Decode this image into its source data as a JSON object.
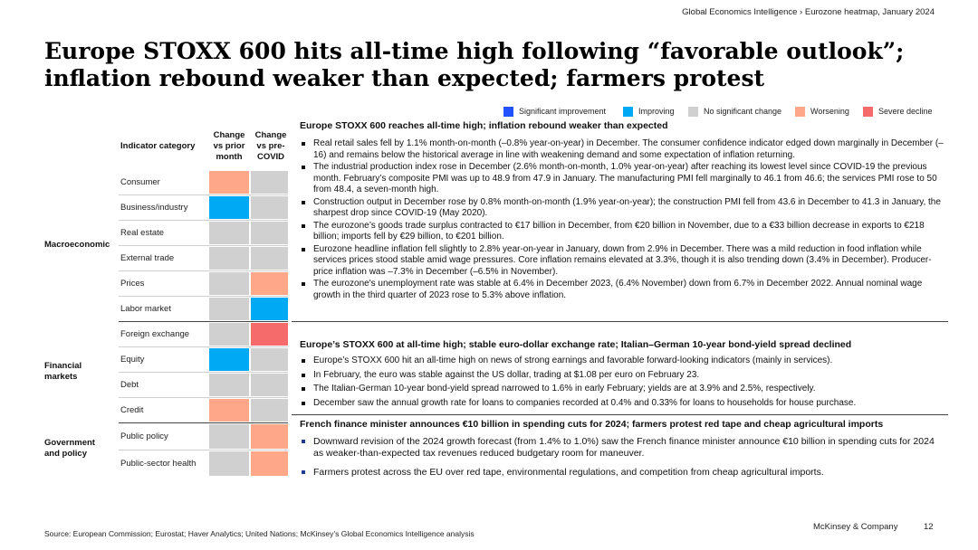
{
  "breadcrumb": "Global Economics Intelligence › Eurozone heatmap, January 2024",
  "title_line1": "Europe STOXX 600 hits all-time high following “favorable outlook”;",
  "title_line2": "inflation rebound weaker than expected; farmers protest",
  "colors": {
    "significant_improvement": "#2251ff",
    "improving": "#00a9f4",
    "no_change": "#d0d0d0",
    "worsening": "#ffa789",
    "severe_decline": "#f56a6a"
  },
  "legend": [
    {
      "label": "Significant improvement",
      "color": "#2251ff"
    },
    {
      "label": "Improving",
      "color": "#00a9f4"
    },
    {
      "label": "No significant change",
      "color": "#d0d0d0"
    },
    {
      "label": "Worsening",
      "color": "#ffa789"
    },
    {
      "label": "Severe decline",
      "color": "#f56a6a"
    }
  ],
  "table": {
    "header_category": "Indicator category",
    "header_col1": [
      "Change",
      "vs prior",
      "month"
    ],
    "header_col2": [
      "Change",
      "vs pre-",
      "COVID"
    ],
    "groups": [
      {
        "label": [
          "Macroeconomic"
        ]
      },
      {
        "label": [
          "Financial",
          "markets"
        ]
      },
      {
        "label": [
          "Government",
          "and policy"
        ]
      }
    ],
    "rows": [
      {
        "label": "Consumer",
        "prior_month": "worsening",
        "pre_covid": "no_change"
      },
      {
        "label": "Business/industry",
        "prior_month": "improving",
        "pre_covid": "no_change"
      },
      {
        "label": "Real estate",
        "prior_month": "no_change",
        "pre_covid": "no_change"
      },
      {
        "label": "External trade",
        "prior_month": "no_change",
        "pre_covid": "no_change"
      },
      {
        "label": "Prices",
        "prior_month": "no_change",
        "pre_covid": "worsening"
      },
      {
        "label": "Labor market",
        "prior_month": "no_change",
        "pre_covid": "improving"
      },
      {
        "label": "Foreign exchange",
        "prior_month": "no_change",
        "pre_covid": "severe_decline"
      },
      {
        "label": "Equity",
        "prior_month": "improving",
        "pre_covid": "no_change"
      },
      {
        "label": "Debt",
        "prior_month": "no_change",
        "pre_covid": "no_change"
      },
      {
        "label": "Credit",
        "prior_month": "worsening",
        "pre_covid": "no_change"
      },
      {
        "label": "Public policy",
        "prior_month": "no_change",
        "pre_covid": "worsening"
      },
      {
        "label": "Public-sector health",
        "prior_month": "no_change",
        "pre_covid": "worsening"
      }
    ]
  },
  "sections": [
    {
      "title": "Europe STOXX 600 reaches all-time high; inflation rebound weaker than expected",
      "bullets": [
        "Real retail sales fell by 1.1% month-on-month (–0.8% year-on-year) in December. The consumer confidence indicator edged down marginally in December (–16) and remains below the historical average in line with weakening demand and some expectation of inflation returning.",
        "The industrial production index rose in December (2.6% month-on-month, 1.0% year-on-year) after reaching its lowest level since COVID-19 the previous month. February’s composite PMI was up to 48.9 from 47.9 in January. The manufacturing PMI fell marginally to 46.1 from 46.6; the services PMI rose to 50 from 48.4, a seven-month high.",
        "Construction output in December rose by 0.8% month-on-month (1.9% year-on-year); the construction PMI fell from 43.6 in December to 41.3 in January, the sharpest drop since COVID-19 (May 2020).",
        "The eurozone’s goods trade surplus contracted to €17 billion in December, from €20 billion in November, due to a €33 billion decrease in exports to €218 billion; imports fell by €29 billion, to €201 billion.",
        "Eurozone headline inflation fell slightly to 2.8% year-on-year in January, down from 2.9% in December. There was a mild reduction in food inflation while services prices stood stable amid wage pressures. Core inflation remains elevated at 3.3%, though it is also trending down (3.4% in December). Producer-price inflation was –7.3% in December (–6.5% in November).",
        "The eurozone's unemployment rate was stable at 6.4% in December 2023, (6.4% November) down from 6.7% in December 2022. Annual nominal wage growth in the third quarter of 2023 rose to 5.3% above inflation."
      ]
    },
    {
      "title": "Europe’s STOXX 600 at all-time high; stable euro-dollar exchange rate; Italian–German 10-year bond-yield spread declined",
      "bullets": [
        "Europe’s STOXX 600 hit an all-time high on news of strong earnings and favorable forward-looking indicators (mainly in services).",
        "In February, the euro was stable against the US dollar, trading at $1.08 per euro on February 23.",
        "The Italian-German 10-year bond-yield spread narrowed to 1.6% in early February; yields are at 3.9% and 2.5%, respectively.",
        "December saw the annual growth rate for loans to companies recorded at 0.4% and 0.33% for loans to households for house purchase."
      ]
    },
    {
      "title": "French finance minister announces €10 billion in spending cuts for 2024; farmers protest red tape and cheap agricultural imports",
      "bullets": [
        "Downward revision of the 2024 growth forecast (from 1.4% to 1.0%) saw the French finance minister announce €10 billion in spending cuts for 2024 as weaker-than-expected tax revenues reduced budgetary room for maneuver.",
        "Farmers protest across the EU over red tape, environmental regulations, and competition from cheap agricultural imports."
      ]
    }
  ],
  "source": "Source: European Commission; Eurostat; Haver Analytics; United Nations; McKinsey’s Global Economics Intelligence analysis",
  "brand": "McKinsey & Company",
  "page_number": "12"
}
